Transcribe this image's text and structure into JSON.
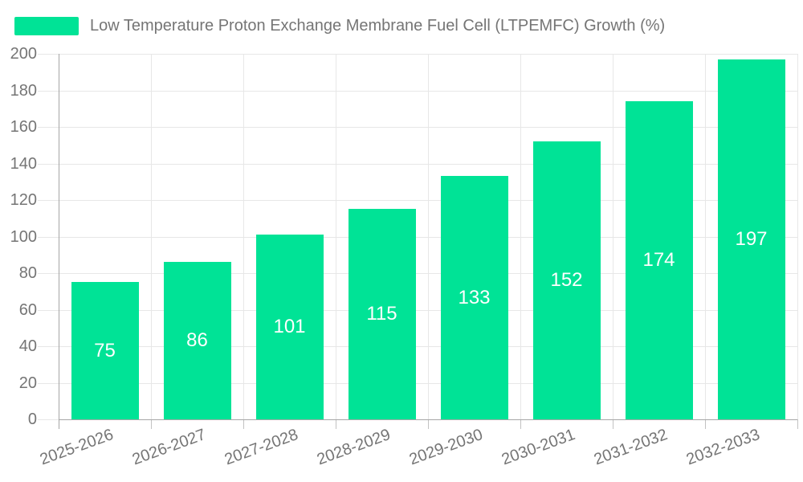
{
  "chart_data": {
    "type": "bar",
    "legend": "Low Temperature Proton Exchange Membrane Fuel Cell (LTPEMFC) Growth (%)",
    "legend_position": "top-left",
    "categories": [
      "2025-2026",
      "2026-2027",
      "2027-2028",
      "2028-2029",
      "2029-2030",
      "2030-2031",
      "2031-2032",
      "2032-2033"
    ],
    "values": [
      75,
      86,
      101,
      115,
      133,
      152,
      174,
      197
    ],
    "ylim": [
      0,
      200
    ],
    "y_ticks": [
      0,
      20,
      40,
      60,
      80,
      100,
      120,
      140,
      160,
      180,
      200
    ],
    "grid": true,
    "x_label_rotation_deg": -20,
    "colors": {
      "bar": "#00E396",
      "bar_value_label": "#FFFFFF",
      "axis_text": "#757575",
      "gridline": "#E7E7E7",
      "axis_line": "#A6A6A6",
      "tick": "#C2C2C2"
    }
  }
}
